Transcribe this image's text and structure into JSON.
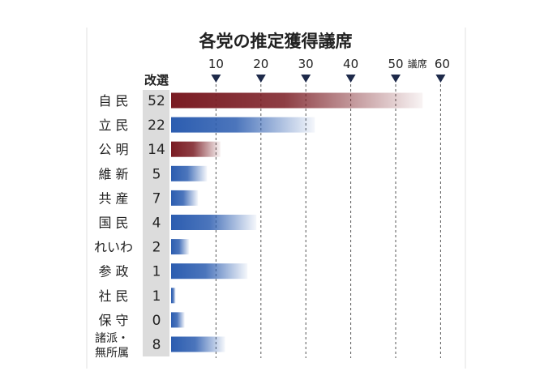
{
  "chart_data": {
    "type": "bar",
    "title": "各党の推定獲得議席",
    "unit": "議席",
    "column_header": "改選",
    "ticks": [
      10,
      20,
      30,
      40,
      50,
      60
    ],
    "xlim": [
      0,
      60
    ],
    "colors": {
      "maroon": "#7a1c23",
      "blue": "#2c5db0"
    },
    "rows": [
      {
        "party": [
          "自 民"
        ],
        "seats_up": "52",
        "estimate_max": 56,
        "color": "maroon"
      },
      {
        "party": [
          "立 民"
        ],
        "seats_up": "22",
        "estimate_max": 32,
        "color": "blue"
      },
      {
        "party": [
          "公 明"
        ],
        "seats_up": "14",
        "estimate_max": 11,
        "color": "maroon"
      },
      {
        "party": [
          "維 新"
        ],
        "seats_up": "5",
        "estimate_max": 8,
        "color": "blue"
      },
      {
        "party": [
          "共 産"
        ],
        "seats_up": "7",
        "estimate_max": 6,
        "color": "blue"
      },
      {
        "party": [
          "国 民"
        ],
        "seats_up": "4",
        "estimate_max": 19,
        "color": "blue"
      },
      {
        "party": [
          "れいわ"
        ],
        "seats_up": "2",
        "estimate_max": 4,
        "color": "blue"
      },
      {
        "party": [
          "参 政"
        ],
        "seats_up": "1",
        "estimate_max": 17,
        "color": "blue"
      },
      {
        "party": [
          "社 民"
        ],
        "seats_up": "1",
        "estimate_max": 1,
        "color": "blue"
      },
      {
        "party": [
          "保 守"
        ],
        "seats_up": "0",
        "estimate_max": 3,
        "color": "blue"
      },
      {
        "party": [
          "諸派・",
          "無所属"
        ],
        "seats_up": "8",
        "estimate_max": 12,
        "color": "blue"
      }
    ]
  }
}
